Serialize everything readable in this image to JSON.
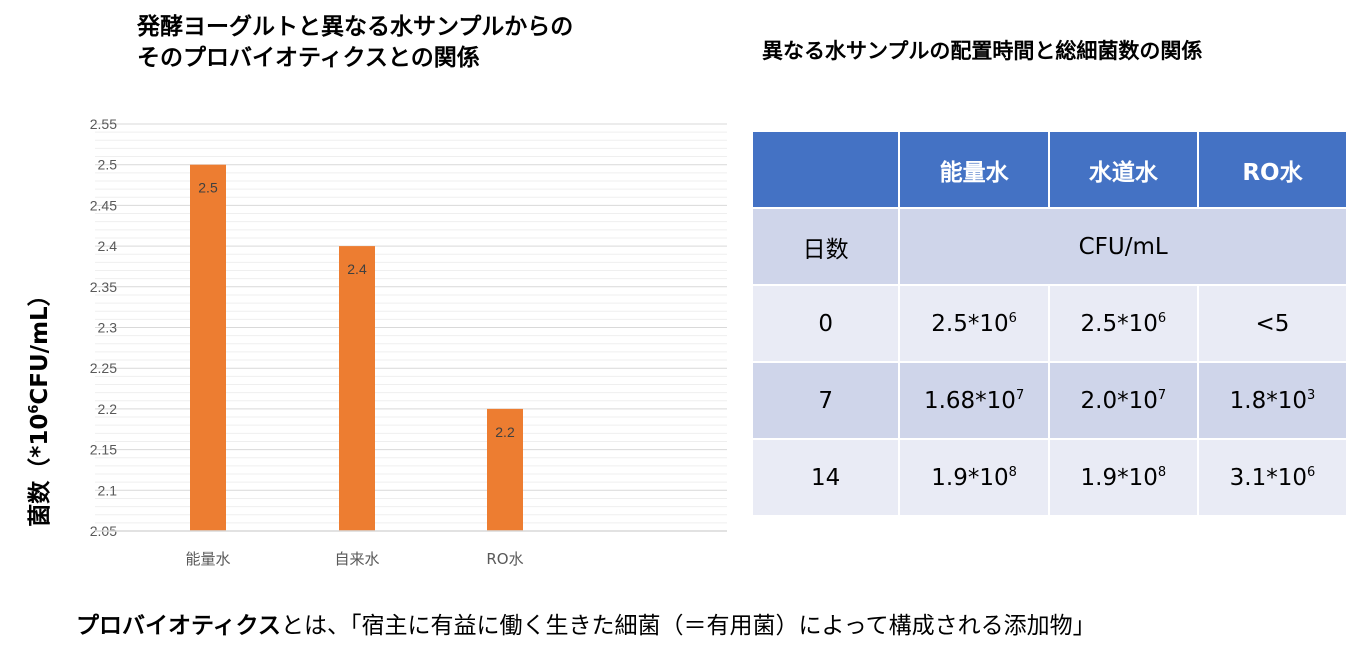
{
  "chart_data": {
    "type": "bar",
    "title_lines": [
      "発酵ヨーグルトと異なる水サンプルからの",
      "そのプロバイオティクスとの関係"
    ],
    "ylabel_prefix": "菌数（*10",
    "ylabel_sup": "6",
    "ylabel_suffix": "CFU/mL）",
    "categories": [
      "能量水",
      "自来水",
      "RO水"
    ],
    "values": [
      2.5,
      2.4,
      2.2
    ],
    "data_labels": [
      "2.5",
      "2.4",
      "2.2"
    ],
    "ylim": [
      2.05,
      2.55
    ],
    "yticks": [
      "2.05",
      "2.1",
      "2.15",
      "2.2",
      "2.25",
      "2.3",
      "2.35",
      "2.4",
      "2.45",
      "2.5",
      "2.55"
    ],
    "grid": true,
    "bar_color": "#ed7d31"
  },
  "table": {
    "title": "異なる水サンプルの配置時間と総細菌数の関係",
    "headers": [
      "",
      "能量水",
      "水道水",
      "RO水"
    ],
    "unit_row": {
      "label": "日数",
      "unit": "CFU/mL"
    },
    "rows": [
      {
        "day": "0",
        "cells": [
          {
            "base": "2.5*10",
            "exp": "6"
          },
          {
            "base": "2.5*10",
            "exp": "6"
          },
          {
            "base": "<5",
            "exp": ""
          }
        ]
      },
      {
        "day": "7",
        "cells": [
          {
            "base": "1.68*10",
            "exp": "7"
          },
          {
            "base": "2.0*10",
            "exp": "7"
          },
          {
            "base": "1.8*10",
            "exp": "3"
          }
        ]
      },
      {
        "day": "14",
        "cells": [
          {
            "base": "1.9*10",
            "exp": "8"
          },
          {
            "base": "1.9*10",
            "exp": "8"
          },
          {
            "base": "3.1*10",
            "exp": "6"
          }
        ]
      }
    ],
    "header_color": "#4472c4"
  },
  "footer": {
    "bold": "プロバイオティクス",
    "text": "とは、「宿主に有益に働く生きた細菌（＝有用菌）によって構成される添加物」"
  }
}
